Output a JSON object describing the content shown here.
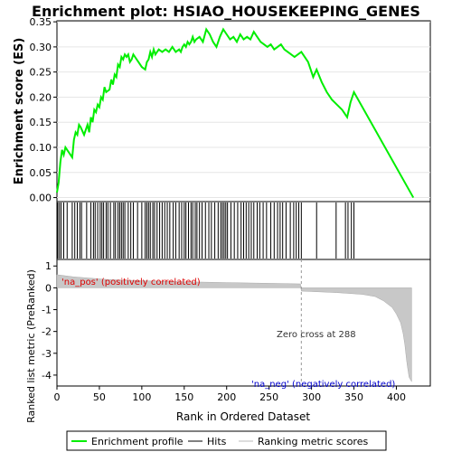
{
  "chart_data": {
    "type": "line",
    "title": "Enrichment plot: HSIAO_HOUSEKEEPING_GENES",
    "xlabel": "Rank in Ordered Dataset",
    "ylabel_top": "Enrichment score (ES)",
    "ylabel_bottom": "Ranked list metric (PreRanked)",
    "xlim": [
      0,
      440
    ],
    "x_ticks": [
      0,
      50,
      100,
      150,
      200,
      250,
      300,
      350,
      400
    ],
    "es_ylim": [
      -0.008,
      0.352
    ],
    "es_ticks": [
      0.0,
      0.05,
      0.1,
      0.15,
      0.2,
      0.25,
      0.3,
      0.35
    ],
    "es_tick_labels": [
      "0.00",
      "0.05",
      "0.10",
      "0.15",
      "0.20",
      "0.25",
      "0.30",
      "0.35"
    ],
    "metric_ylim": [
      -4.5,
      1.3
    ],
    "metric_ticks": [
      1,
      0,
      -1,
      -2,
      -3,
      -4
    ],
    "metric_tick_labels": [
      "1",
      "0",
      "-1",
      "-2",
      "-3",
      "-4"
    ],
    "series": [
      {
        "name": "Enrichment profile",
        "color": "#00ee00",
        "x": [
          0,
          2,
          4,
          6,
          8,
          10,
          14,
          18,
          20,
          22,
          24,
          26,
          28,
          32,
          36,
          38,
          40,
          42,
          44,
          46,
          48,
          50,
          52,
          54,
          56,
          58,
          62,
          64,
          66,
          68,
          70,
          72,
          74,
          76,
          78,
          80,
          82,
          84,
          86,
          88,
          90,
          92,
          96,
          100,
          104,
          106,
          108,
          110,
          112,
          114,
          116,
          118,
          120,
          124,
          128,
          132,
          136,
          140,
          144,
          146,
          148,
          150,
          152,
          154,
          156,
          158,
          160,
          162,
          164,
          168,
          172,
          176,
          180,
          184,
          188,
          192,
          196,
          200,
          204,
          208,
          212,
          216,
          220,
          224,
          228,
          232,
          236,
          240,
          244,
          248,
          252,
          256,
          260,
          264,
          268,
          272,
          276,
          280,
          284,
          288,
          296,
          302,
          306,
          312,
          318,
          324,
          330,
          336,
          342,
          346,
          350,
          420
        ],
        "y": [
          0.01,
          0.03,
          0.07,
          0.095,
          0.085,
          0.1,
          0.09,
          0.08,
          0.115,
          0.13,
          0.125,
          0.145,
          0.14,
          0.125,
          0.145,
          0.13,
          0.16,
          0.15,
          0.175,
          0.17,
          0.185,
          0.18,
          0.2,
          0.195,
          0.22,
          0.21,
          0.215,
          0.235,
          0.225,
          0.245,
          0.24,
          0.265,
          0.26,
          0.28,
          0.275,
          0.285,
          0.28,
          0.285,
          0.27,
          0.275,
          0.285,
          0.28,
          0.27,
          0.26,
          0.255,
          0.27,
          0.275,
          0.29,
          0.28,
          0.295,
          0.285,
          0.29,
          0.295,
          0.29,
          0.295,
          0.29,
          0.3,
          0.29,
          0.295,
          0.29,
          0.3,
          0.305,
          0.3,
          0.31,
          0.305,
          0.31,
          0.32,
          0.31,
          0.315,
          0.32,
          0.31,
          0.335,
          0.325,
          0.31,
          0.3,
          0.32,
          0.335,
          0.325,
          0.315,
          0.32,
          0.31,
          0.325,
          0.315,
          0.32,
          0.315,
          0.33,
          0.32,
          0.31,
          0.305,
          0.3,
          0.305,
          0.295,
          0.3,
          0.305,
          0.295,
          0.29,
          0.285,
          0.28,
          0.285,
          0.29,
          0.27,
          0.24,
          0.255,
          0.23,
          0.21,
          0.195,
          0.185,
          0.175,
          0.16,
          0.19,
          0.21,
          0.0
        ]
      }
    ],
    "hits": [
      1,
      3,
      5,
      8,
      12,
      18,
      21,
      24,
      27,
      29,
      35,
      40,
      43,
      45,
      48,
      51,
      53,
      55,
      58,
      60,
      63,
      67,
      69,
      72,
      74,
      76,
      78,
      80,
      84,
      87,
      90,
      95,
      100,
      104,
      106,
      108,
      110,
      113,
      115,
      118,
      121,
      124,
      127,
      130,
      133,
      137,
      140,
      144,
      147,
      150,
      152,
      155,
      158,
      160,
      163,
      165,
      168,
      171,
      175,
      179,
      182,
      186,
      190,
      193,
      195,
      197,
      199,
      201,
      205,
      209,
      213,
      217,
      220,
      223,
      226,
      229,
      232,
      236,
      239,
      243,
      247,
      252,
      256,
      260,
      263,
      266,
      270,
      275,
      279,
      282,
      285,
      288,
      306,
      329,
      340,
      343,
      347,
      350
    ],
    "ranked_metric": {
      "x": [
        0,
        20,
        60,
        120,
        200,
        260,
        287,
        288,
        300,
        330,
        360,
        375,
        385,
        395,
        400,
        405,
        408,
        410,
        412,
        413,
        415,
        418
      ],
      "y": [
        0.6,
        0.5,
        0.38,
        0.3,
        0.24,
        0.2,
        0.18,
        -0.15,
        -0.17,
        -0.22,
        -0.3,
        -0.4,
        -0.6,
        -0.9,
        -1.2,
        -1.6,
        -2.1,
        -2.6,
        -3.3,
        -3.6,
        -4.1,
        -4.3
      ],
      "zero_cross": 288,
      "zero_cross_label": "Zero cross at 288",
      "pos_label": "'na_pos' (positively correlated)",
      "neg_label": "'na_neg' (negatively correlated)"
    },
    "legend": {
      "position": "bottom",
      "entries": [
        {
          "label": "Enrichment profile",
          "color": "#00ee00"
        },
        {
          "label": "Hits",
          "color": "#000000"
        },
        {
          "label": "Ranking metric scores",
          "color": "#bbbbbb"
        }
      ]
    },
    "colors": {
      "pos_label": "#dd0000",
      "neg_label": "#0000cc",
      "metric_fill": "#c8c8c8",
      "hit_line": "#000000"
    }
  }
}
